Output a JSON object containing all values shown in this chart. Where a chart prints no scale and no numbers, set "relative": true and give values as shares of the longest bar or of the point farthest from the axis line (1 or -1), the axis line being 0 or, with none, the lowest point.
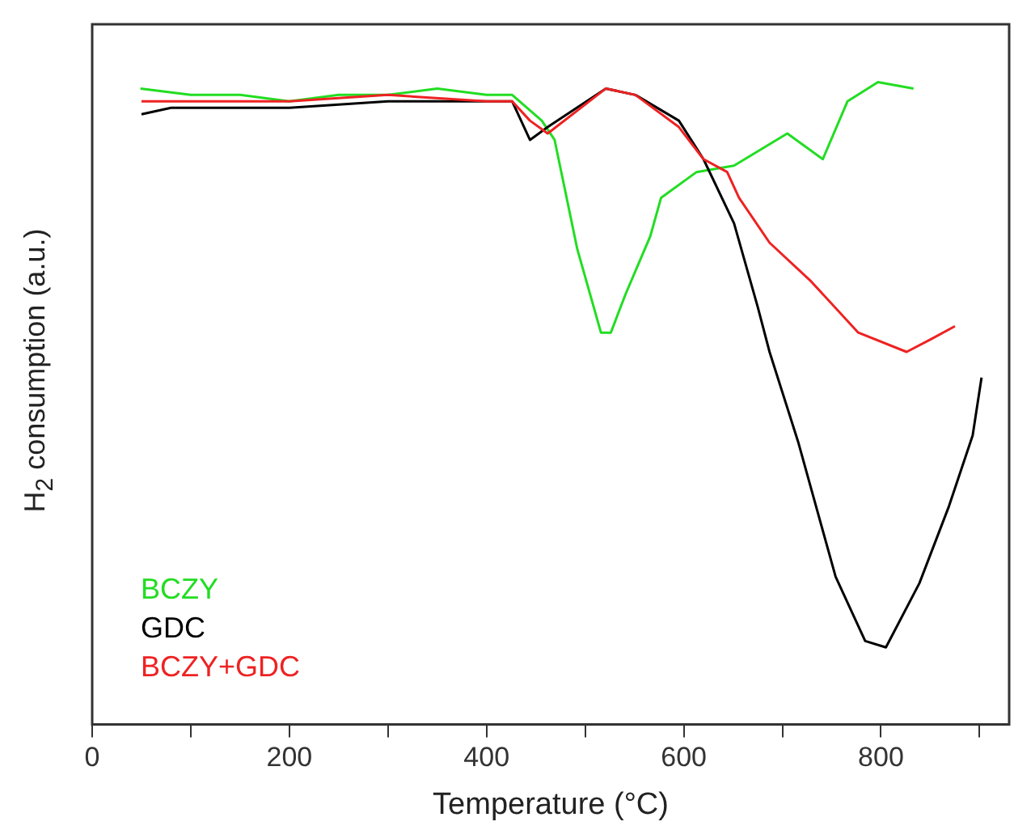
{
  "chart_data": {
    "type": "line",
    "xlabel": "Temperature (°C)",
    "ylabel": "H$_{2}$ consumption (a.u.)",
    "relative": true,
    "xlim": [
      0,
      930
    ],
    "xticks": [
      0,
      {
        "value": 100,
        "label": null
      },
      200,
      {
        "value": 300,
        "label": null
      },
      400,
      {
        "value": 500,
        "label": null
      },
      600,
      {
        "value": 700,
        "label": null
      },
      800,
      {
        "value": 900,
        "label": null
      }
    ],
    "grid": false,
    "legend": "bottom left",
    "marker": "none",
    "line_style": "solid",
    "series": [
      {
        "name": "BCZY",
        "color": "#22dd22",
        "x": [
          49,
          100,
          150,
          200,
          250,
          300,
          350,
          400,
          426,
          456,
          469,
          492,
          516,
          526,
          541,
          566,
          577,
          613,
          651,
          705,
          741,
          766,
          797,
          833
        ],
        "values": [
          0.99,
          0.98,
          0.98,
          0.97,
          0.98,
          0.98,
          0.99,
          0.98,
          0.98,
          0.94,
          0.91,
          0.74,
          0.61,
          0.61,
          0.67,
          0.76,
          0.82,
          0.86,
          0.87,
          0.92,
          0.88,
          0.97,
          1.0,
          0.99
        ]
      },
      {
        "name": "GDC",
        "color": "#000000",
        "x": [
          50,
          80,
          110,
          200,
          300,
          400,
          426,
          444,
          462,
          521,
          551,
          595,
          620,
          651,
          675,
          687,
          716,
          754,
          784,
          805,
          839,
          869,
          893,
          902
        ],
        "values": [
          0.95,
          0.96,
          0.96,
          0.96,
          0.97,
          0.97,
          0.97,
          0.91,
          0.93,
          0.99,
          0.98,
          0.94,
          0.88,
          0.78,
          0.65,
          0.58,
          0.44,
          0.23,
          0.13,
          0.12,
          0.22,
          0.34,
          0.45,
          0.54
        ]
      },
      {
        "name": "BCZY+GDC",
        "color": "#ee2222",
        "x": [
          50,
          100,
          200,
          300,
          400,
          426,
          444,
          462,
          521,
          551,
          595,
          620,
          644,
          656,
          687,
          729,
          777,
          826,
          851,
          875
        ],
        "values": [
          0.97,
          0.97,
          0.97,
          0.98,
          0.97,
          0.97,
          0.94,
          0.92,
          0.99,
          0.98,
          0.93,
          0.88,
          0.86,
          0.82,
          0.75,
          0.69,
          0.61,
          0.58,
          0.6,
          0.62
        ]
      }
    ]
  }
}
